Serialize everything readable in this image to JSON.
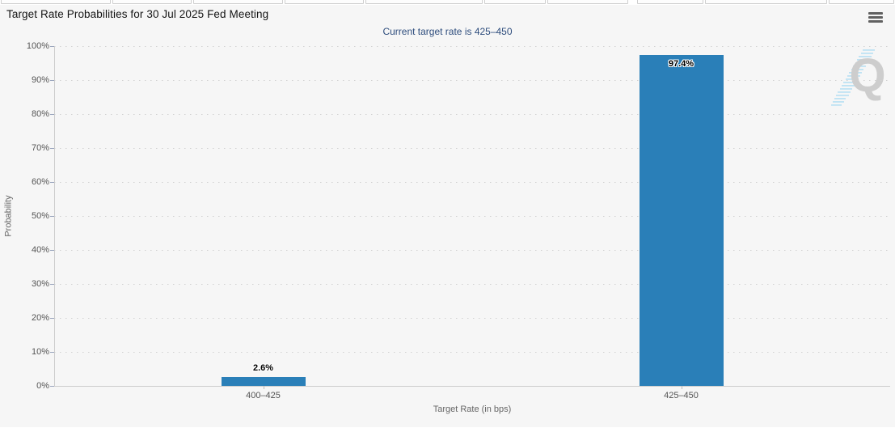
{
  "header": {
    "title": "Target Rate Probabilities for 30 Jul 2025 Fed Meeting",
    "subtitle": "Current target rate is 425–450",
    "menu_icon": "hamburger-icon"
  },
  "chart_data": {
    "type": "bar",
    "title": "Target Rate Probabilities for 30 Jul 2025 Fed Meeting",
    "subtitle": "Current target rate is 425–450",
    "categories": [
      "400–425",
      "425–450"
    ],
    "values": [
      2.6,
      97.4
    ],
    "value_labels": [
      "2.6%",
      "97.4%"
    ],
    "xlabel": "Target Rate (in bps)",
    "ylabel": "Probability",
    "ylim": [
      0,
      100
    ],
    "ytick_step": 10,
    "ytick_suffix": "%",
    "grid": "horizontal dotted",
    "legend": "none",
    "bar_color": "#2a7fb8"
  },
  "watermark": {
    "letter": "Q"
  },
  "colors": {
    "panel_bg": "#f6f6f6",
    "bar": "#2a7fb8",
    "subtitle_text": "#2e4d7d",
    "axis_line": "#cccccc",
    "tick_text": "#555555",
    "axis_title_text": "#666666",
    "watermark_gray": "#c9c9c9",
    "watermark_blue": "#b8e0f3"
  }
}
